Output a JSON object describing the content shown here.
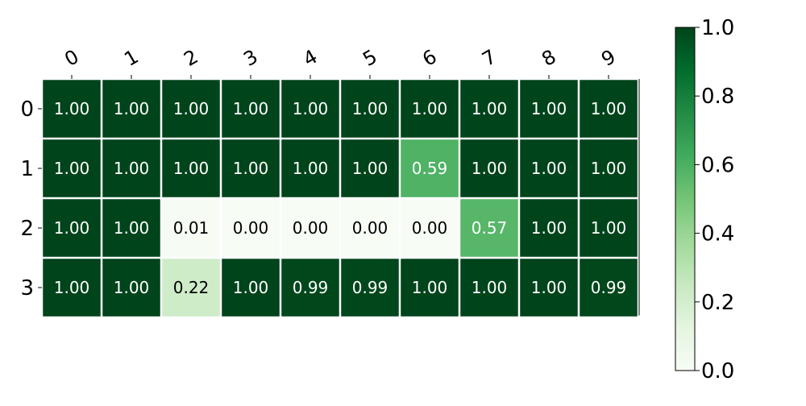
{
  "chart_data": {
    "type": "heatmap",
    "title": "",
    "xlabel": "",
    "ylabel": "",
    "x_categories": [
      "0",
      "1",
      "2",
      "3",
      "4",
      "5",
      "6",
      "7",
      "8",
      "9"
    ],
    "y_categories": [
      "0",
      "1",
      "2",
      "3"
    ],
    "values": [
      [
        1.0,
        1.0,
        1.0,
        1.0,
        1.0,
        1.0,
        1.0,
        1.0,
        1.0,
        1.0
      ],
      [
        1.0,
        1.0,
        1.0,
        1.0,
        1.0,
        1.0,
        0.59,
        1.0,
        1.0,
        1.0
      ],
      [
        1.0,
        1.0,
        0.01,
        0.0,
        0.0,
        0.0,
        0.0,
        0.57,
        1.0,
        1.0
      ],
      [
        1.0,
        1.0,
        0.22,
        1.0,
        0.99,
        0.99,
        1.0,
        1.0,
        1.0,
        0.99
      ]
    ],
    "cell_labels": [
      [
        "1.00",
        "1.00",
        "1.00",
        "1.00",
        "1.00",
        "1.00",
        "1.00",
        "1.00",
        "1.00",
        "1.00"
      ],
      [
        "1.00",
        "1.00",
        "1.00",
        "1.00",
        "1.00",
        "1.00",
        "0.59",
        "1.00",
        "1.00",
        "1.00"
      ],
      [
        "1.00",
        "1.00",
        "0.01",
        "0.00",
        "0.00",
        "0.00",
        "0.00",
        "0.57",
        "1.00",
        "1.00"
      ],
      [
        "1.00",
        "1.00",
        "0.22",
        "1.00",
        "0.99",
        "0.99",
        "1.00",
        "1.00",
        "1.00",
        "0.99"
      ]
    ],
    "x_tick_position": "top",
    "colormap": "Greens",
    "colormap_stops": [
      "#f7fcf5",
      "#e5f5e0",
      "#c7e9c0",
      "#a1d99b",
      "#74c476",
      "#41ab5d",
      "#238b45",
      "#006d2c",
      "#00441b"
    ],
    "colorbar": {
      "range": [
        0.0,
        1.0
      ],
      "ticks": [
        0.0,
        0.2,
        0.4,
        0.6,
        0.8,
        1.0
      ],
      "tick_labels": [
        "0.0",
        "0.2",
        "0.4",
        "0.6",
        "0.8",
        "1.0"
      ],
      "placement": "right"
    },
    "grid": false,
    "text_color_light": "#ffffff",
    "text_color_dark": "#000000"
  }
}
